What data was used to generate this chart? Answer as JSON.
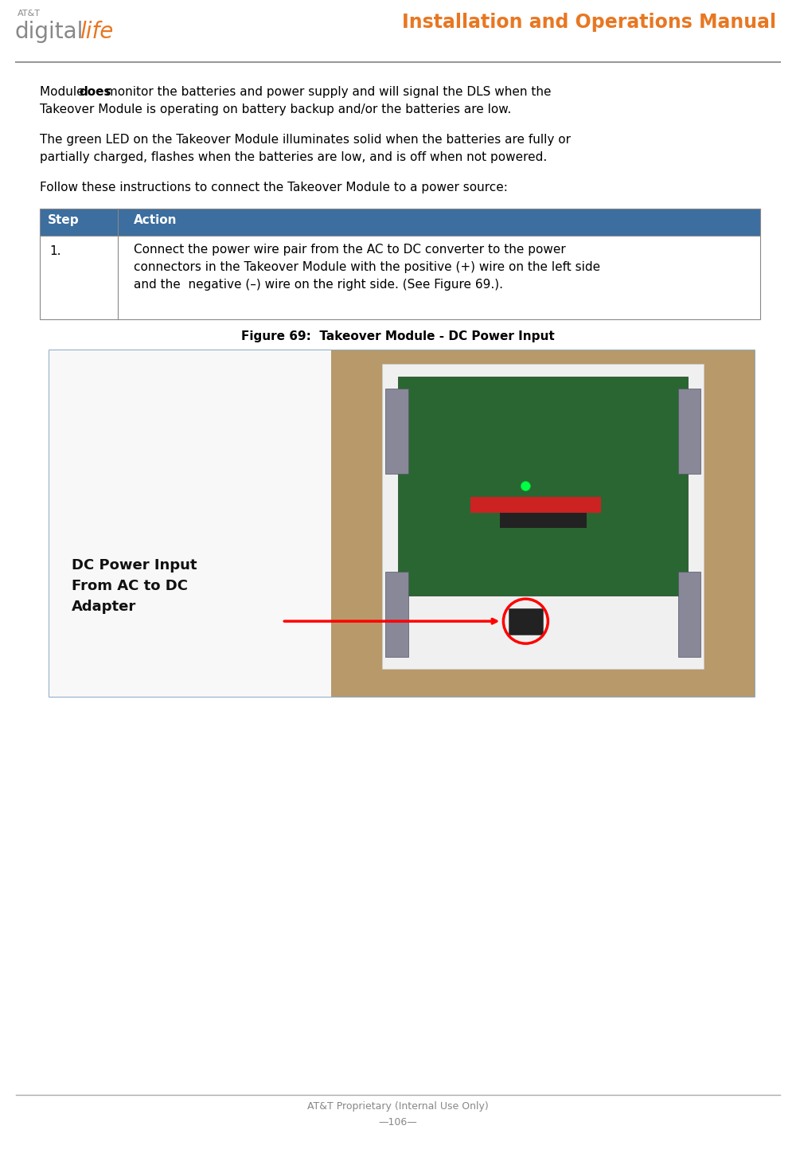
{
  "page_width": 10.0,
  "page_height": 14.43,
  "dpi": 100,
  "bg_color": "#ffffff",
  "header_line_color": "#999999",
  "header_title": "Installation and Operations Manual",
  "header_title_color": "#e87722",
  "header_title_fontsize": 17,
  "logo_att_fontsize": 8,
  "logo_digital_fontsize": 20,
  "logo_life_fontsize": 20,
  "logo_gray": "#888888",
  "logo_orange": "#e87722",
  "para1_line1_pre": "Module ",
  "para1_line1_bold": "does",
  "para1_line1_post": " monitor the batteries and power supply and will signal the DLS when the",
  "para1_line2": "Takeover Module is operating on battery backup and/or the batteries are low.",
  "para2_line1": "The green LED on the Takeover Module illuminates solid when the batteries are fully or",
  "para2_line2": "partially charged, flashes when the batteries are low, and is off when not powered.",
  "para3": "Follow these instructions to connect the Takeover Module to a power source:",
  "table_header_bg": "#3c6e9f",
  "table_header_text_color": "#ffffff",
  "table_header_col1": "Step",
  "table_header_col2": "Action",
  "table_row1_col1": "1.",
  "table_action_line1": "Connect the power wire pair from the AC to DC converter to the power",
  "table_action_line2": "connectors in the Takeover Module with the positive (+) wire on the left side",
  "table_action_line3": "and the  negative (–) wire on the right side. (See Figure 69.).",
  "table_border_color": "#888888",
  "figure_caption": "Figure 69:  Takeover Module - DC Power Input",
  "figure_caption_fontsize": 11,
  "body_fontsize": 11,
  "footer_text1": "AT&T Proprietary (Internal Use Only)",
  "footer_text2": "—106—",
  "footer_color": "#888888",
  "footer_line_color": "#aaaaaa",
  "footer_fontsize": 9,
  "text_color": "#000000",
  "photo_bg": "#b8996a",
  "photo_white": "#f0f0f0",
  "photo_pcb_green": "#2a6632",
  "photo_border": "#8888aa"
}
